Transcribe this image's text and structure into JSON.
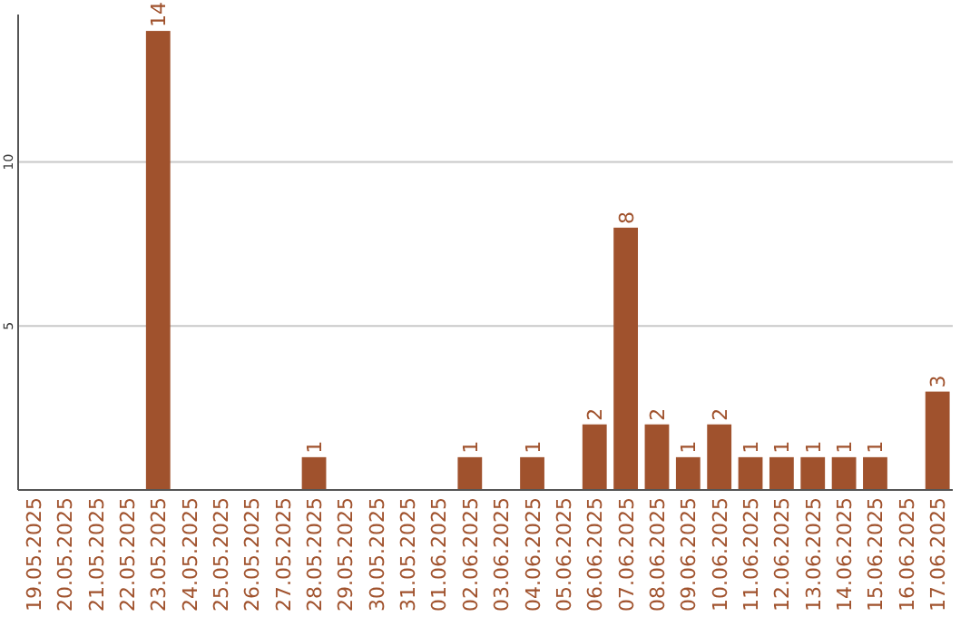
{
  "chart_data": {
    "type": "bar",
    "categories": [
      "19.05.2025",
      "20.05.2025",
      "21.05.2025",
      "22.05.2025",
      "23.05.2025",
      "24.05.2025",
      "25.05.2025",
      "26.05.2025",
      "27.05.2025",
      "28.05.2025",
      "29.05.2025",
      "30.05.2025",
      "31.05.2025",
      "01.06.2025",
      "02.06.2025",
      "03.06.2025",
      "04.06.2025",
      "05.06.2025",
      "06.06.2025",
      "07.06.2025",
      "08.06.2025",
      "09.06.2025",
      "10.06.2025",
      "11.06.2025",
      "12.06.2025",
      "13.06.2025",
      "14.06.2025",
      "15.06.2025",
      "16.06.2025",
      "17.06.2025"
    ],
    "values": [
      0,
      0,
      0,
      0,
      14,
      0,
      0,
      0,
      0,
      1,
      0,
      0,
      0,
      0,
      1,
      0,
      1,
      0,
      2,
      8,
      2,
      1,
      2,
      1,
      1,
      1,
      1,
      1,
      0,
      3
    ],
    "value_labels": [
      null,
      null,
      null,
      null,
      "14",
      null,
      null,
      null,
      null,
      "1",
      null,
      null,
      null,
      null,
      "1",
      null,
      "1",
      null,
      "2",
      "8",
      "2",
      "1",
      "2",
      "1",
      "1",
      "1",
      "1",
      "1",
      null,
      "3"
    ],
    "color": "#a0522d",
    "ylim": [
      0,
      14.5
    ],
    "yticks": [
      5,
      10
    ],
    "grid": "y"
  }
}
